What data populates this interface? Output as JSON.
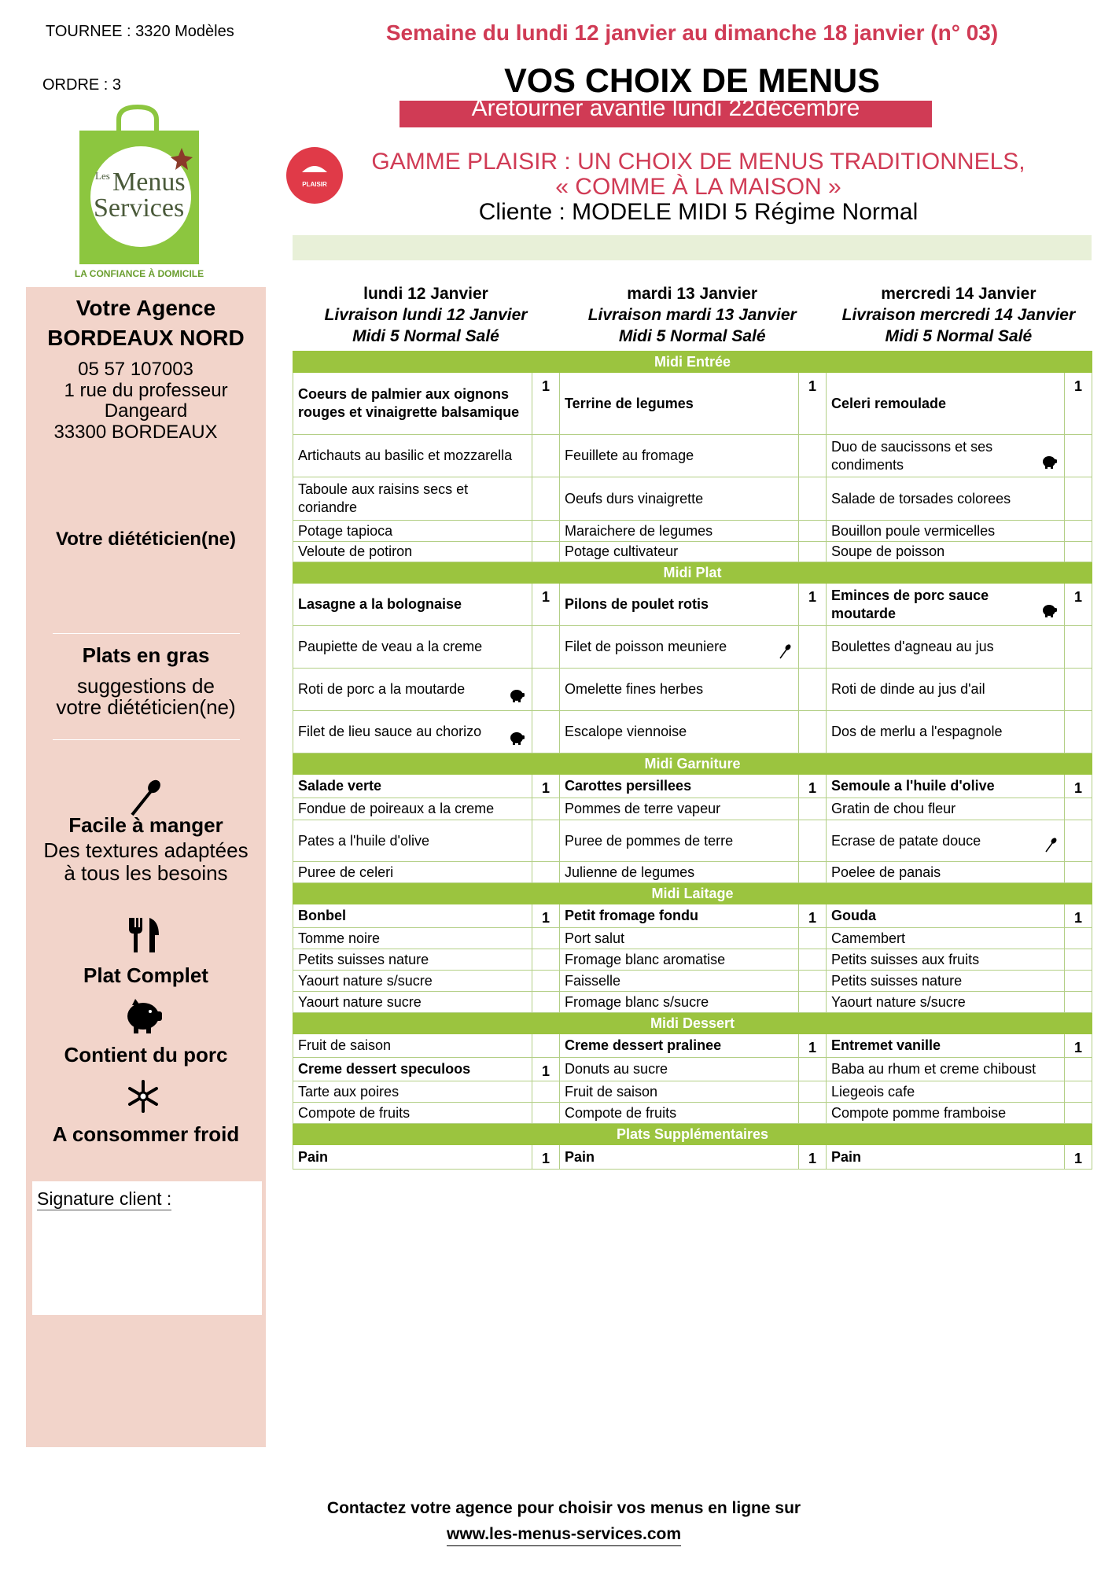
{
  "header": {
    "tournee": "TOURNEE : 3320 Modèles",
    "ordre": "ORDRE : 3",
    "week": "Semaine du lundi 12 janvier au dimanche 18 janvier (n° 03)",
    "title": "VOS CHOIX DE MENUS",
    "return_notice": "Aretourner avantle lundi 22décembre",
    "logo": {
      "small": "Les",
      "line1": "Menus",
      "line2": "Services",
      "tagline": "LA CONFIANCE À DOMICILE"
    },
    "badge": "PLAISIR",
    "range_line1": "GAMME PLAISIR : UN CHOIX DE MENUS TRADITIONNELS,",
    "range_line2": "« COMME À LA MAISON »",
    "client": "Cliente : MODELE MIDI 5 Régime Normal"
  },
  "sidebar": {
    "agency_title": "Votre Agence",
    "agency_name": "BORDEAUX NORD",
    "phone": "05 57 107003",
    "address": [
      "1 rue du professeur",
      "Dangeard",
      "33300 BORDEAUX"
    ],
    "dietician": "Votre diététicien(ne)",
    "bold_title": "Plats en gras",
    "bold_text": [
      "suggestions de",
      "votre diététicien(ne)"
    ],
    "legend": [
      {
        "label": "Facile à manger",
        "desc": [
          "Des textures adaptées",
          "à tous les besoins"
        ]
      },
      {
        "label": "Plat Complet"
      },
      {
        "label": "Contient du porc"
      },
      {
        "label": "A consommer froid"
      }
    ],
    "signature": "Signature client :"
  },
  "table": {
    "days": [
      {
        "day": "lundi 12 Janvier",
        "delivery": "Livraison lundi 12 Janvier",
        "menu": "Midi 5 Normal Salé"
      },
      {
        "day": "mardi 13 Janvier",
        "delivery": "Livraison mardi 13 Janvier",
        "menu": "Midi 5 Normal Salé"
      },
      {
        "day": "mercredi 14 Janvier",
        "delivery": "Livraison mercredi 14 Janvier",
        "menu": "Midi 5 Normal Salé"
      }
    ],
    "sections": [
      {
        "title": "Midi Entrée",
        "rows": [
          [
            {
              "text": "Coeurs de palmier aux oignons rouges et vinaigrette balsamique",
              "qty": 1
            },
            {
              "text": "Terrine de legumes",
              "qty": 1
            },
            {
              "text": "Celeri remoulade",
              "qty": 1
            }
          ],
          [
            {
              "text": "Artichauts au basilic et mozzarella"
            },
            {
              "text": "Feuillete au fromage"
            },
            {
              "text": "Duo de saucissons et ses condiments",
              "icon": "pork"
            }
          ],
          [
            {
              "text": "Taboule aux raisins secs et coriandre"
            },
            {
              "text": "Oeufs durs vinaigrette"
            },
            {
              "text": "Salade de torsades colorees"
            }
          ],
          [
            {
              "text": "Potage tapioca"
            },
            {
              "text": "Maraichere de legumes"
            },
            {
              "text": "Bouillon poule vermicelles"
            }
          ],
          [
            {
              "text": "Veloute de potiron"
            },
            {
              "text": "Potage cultivateur"
            },
            {
              "text": "Soupe de poisson"
            }
          ]
        ]
      },
      {
        "title": "Midi Plat",
        "rows": [
          [
            {
              "text": "Lasagne a la bolognaise",
              "qty": 1
            },
            {
              "text": "Pilons de poulet rotis",
              "qty": 1
            },
            {
              "text": "Eminces de porc sauce moutarde",
              "qty": 1,
              "icon": "pork"
            }
          ],
          [
            {
              "text": "Paupiette de veau a la creme"
            },
            {
              "text": "Filet de poisson meuniere",
              "icon": "spoon"
            },
            {
              "text": "Boulettes d'agneau au jus"
            }
          ],
          [
            {
              "text": "Roti de porc a la moutarde",
              "icon": "pork"
            },
            {
              "text": "Omelette fines herbes"
            },
            {
              "text": "Roti de dinde au jus d'ail"
            }
          ],
          [
            {
              "text": "Filet de lieu sauce au chorizo",
              "icon": "pork"
            },
            {
              "text": "Escalope viennoise"
            },
            {
              "text": "Dos de merlu a l'espagnole"
            }
          ]
        ]
      },
      {
        "title": "Midi Garniture",
        "rows": [
          [
            {
              "text": "Salade verte",
              "qty": 1
            },
            {
              "text": "Carottes persillees",
              "qty": 1
            },
            {
              "text": "Semoule a l'huile d'olive",
              "qty": 1
            }
          ],
          [
            {
              "text": "Fondue de poireaux a la creme"
            },
            {
              "text": "Pommes de terre vapeur"
            },
            {
              "text": "Gratin de chou fleur"
            }
          ],
          [
            {
              "text": "Pates a l'huile d'olive"
            },
            {
              "text": "Puree de pommes de terre"
            },
            {
              "text": "Ecrase de patate douce",
              "icon": "spoon"
            }
          ],
          [
            {
              "text": "Puree de celeri"
            },
            {
              "text": "Julienne de legumes"
            },
            {
              "text": "Poelee de panais"
            }
          ]
        ]
      },
      {
        "title": "Midi Laitage",
        "rows": [
          [
            {
              "text": "Bonbel",
              "qty": 1
            },
            {
              "text": "Petit fromage fondu",
              "qty": 1
            },
            {
              "text": "Gouda",
              "qty": 1
            }
          ],
          [
            {
              "text": "Tomme noire"
            },
            {
              "text": "Port salut"
            },
            {
              "text": "Camembert"
            }
          ],
          [
            {
              "text": "Petits suisses nature"
            },
            {
              "text": "Fromage blanc aromatise"
            },
            {
              "text": "Petits suisses aux fruits"
            }
          ],
          [
            {
              "text": "Yaourt nature s/sucre"
            },
            {
              "text": "Faisselle"
            },
            {
              "text": "Petits suisses nature"
            }
          ],
          [
            {
              "text": "Yaourt nature sucre"
            },
            {
              "text": "Fromage blanc s/sucre"
            },
            {
              "text": "Yaourt nature s/sucre"
            }
          ]
        ]
      },
      {
        "title": "Midi Dessert",
        "rows": [
          [
            {
              "text": "Fruit de saison"
            },
            {
              "text": "Creme dessert pralinee",
              "qty": 1
            },
            {
              "text": "Entremet vanille",
              "qty": 1
            }
          ],
          [
            {
              "text": "Creme dessert speculoos",
              "qty": 1
            },
            {
              "text": "Donuts au sucre"
            },
            {
              "text": "Baba au rhum et creme chiboust"
            }
          ],
          [
            {
              "text": "Tarte aux poires"
            },
            {
              "text": "Fruit de saison"
            },
            {
              "text": "Liegeois cafe"
            }
          ],
          [
            {
              "text": "Compote de fruits"
            },
            {
              "text": "Compote de fruits"
            },
            {
              "text": "Compote pomme framboise"
            }
          ]
        ]
      },
      {
        "title": "Plats Supplémentaires",
        "rows": [
          [
            {
              "text": "Pain",
              "qty": 1
            },
            {
              "text": "Pain",
              "qty": 1
            },
            {
              "text": "Pain",
              "qty": 1
            }
          ]
        ]
      }
    ]
  },
  "footer": {
    "contact": "Contactez votre agence pour choisir vos menus en ligne sur",
    "url": "www.les-menus-services.com"
  }
}
